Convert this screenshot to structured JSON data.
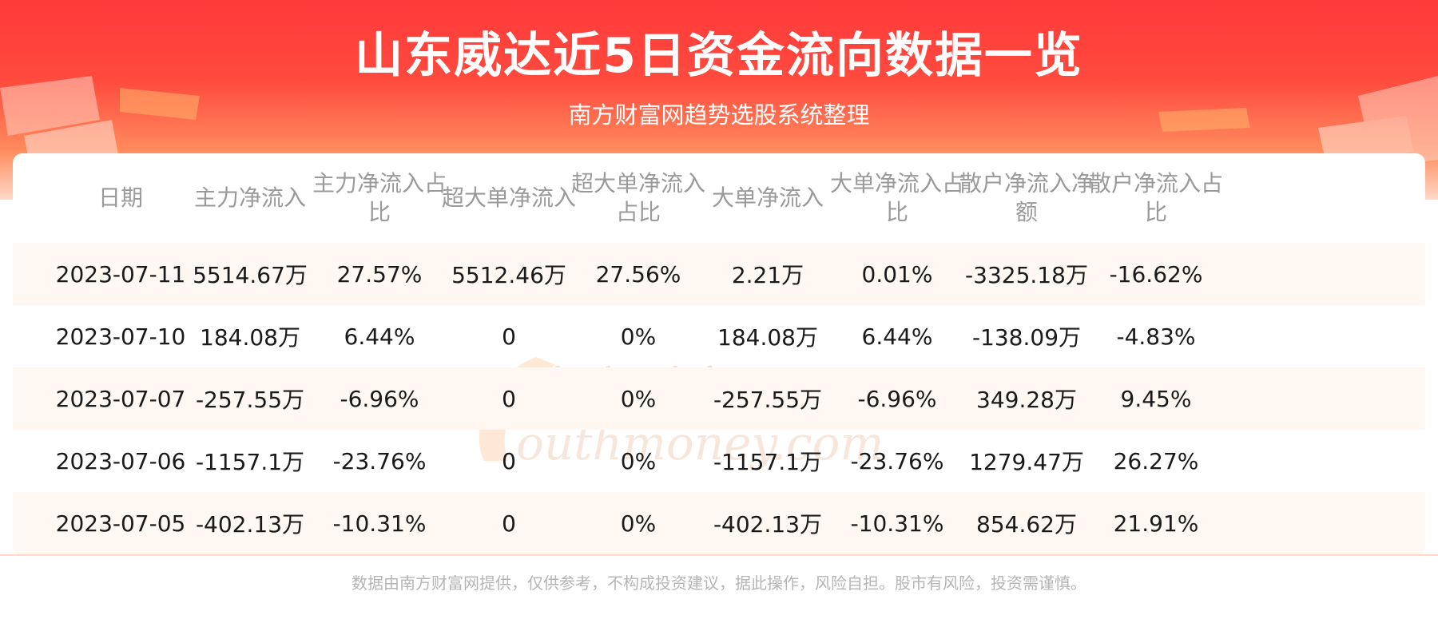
{
  "header": {
    "title": "山东威达近5日资金流向数据一览",
    "subtitle": "南方财富网趋势选股系统整理"
  },
  "watermark": {
    "cn": "南方财富网",
    "en": "outhmoney.com"
  },
  "chart_data": {
    "type": "table",
    "columns": [
      "日期",
      "主力净流入",
      "主力净流入占比",
      "超大单净流入",
      "超大单净流入占比",
      "大单净流入",
      "大单净流入占比",
      "散户净流入净额",
      "散户净流入占比"
    ],
    "rows": [
      [
        "2023-07-11",
        "5514.67万",
        "27.57%",
        "5512.46万",
        "27.56%",
        "2.21万",
        "0.01%",
        "-3325.18万",
        "-16.62%"
      ],
      [
        "2023-07-10",
        "184.08万",
        "6.44%",
        "0",
        "0%",
        "184.08万",
        "6.44%",
        "-138.09万",
        "-4.83%"
      ],
      [
        "2023-07-07",
        "-257.55万",
        "-6.96%",
        "0",
        "0%",
        "-257.55万",
        "-6.96%",
        "349.28万",
        "9.45%"
      ],
      [
        "2023-07-06",
        "-1157.1万",
        "-23.76%",
        "0",
        "0%",
        "-1157.1万",
        "-23.76%",
        "1279.47万",
        "26.27%"
      ],
      [
        "2023-07-05",
        "-402.13万",
        "-10.31%",
        "0",
        "0%",
        "-402.13万",
        "-10.31%",
        "854.62万",
        "21.91%"
      ]
    ]
  },
  "footer": {
    "disclaimer": "数据由南方财富网提供，仅供参考，不构成投资建议，据此操作，风险自担。股市有风险，投资需谨慎。"
  },
  "colors": {
    "banner": "#ff3a3a",
    "row_shade": "#fff7f1",
    "header_text": "#9a9a9a",
    "body_text": "#1a1a1a",
    "footer_text": "#b5b5b5"
  }
}
